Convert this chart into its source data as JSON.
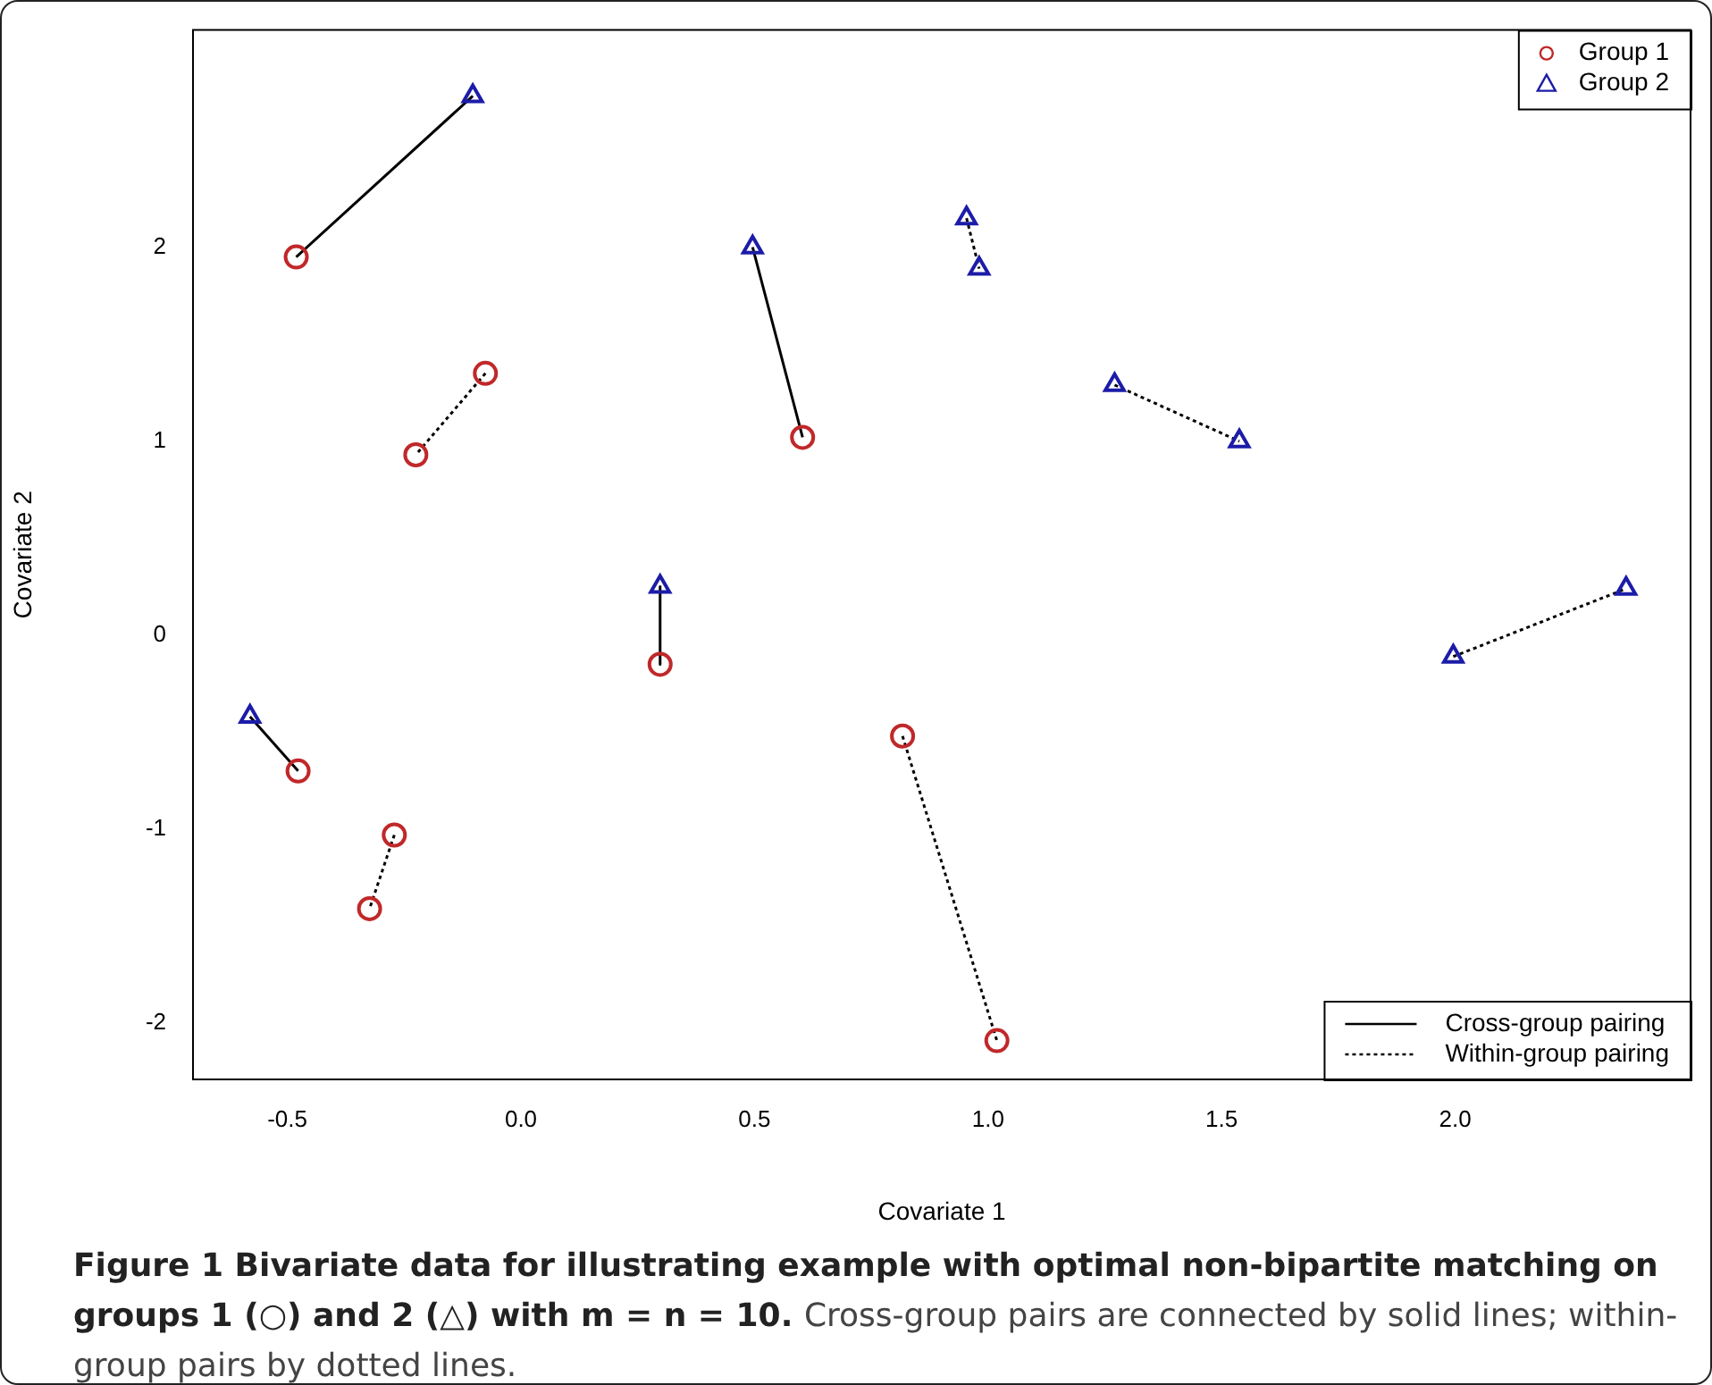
{
  "chart_data": {
    "type": "scatter",
    "xlabel": "Covariate 1",
    "ylabel": "Covariate 2",
    "xlim": [
      -0.702,
      2.504
    ],
    "ylim": [
      -2.29,
      3.12
    ],
    "xticks": [
      -0.5,
      {
        "value": 0,
        "label": "0.0"
      },
      0.5,
      {
        "value": 1,
        "label": "1.0"
      },
      1.5,
      {
        "value": 2,
        "label": "2.0"
      }
    ],
    "yticks": [
      -2,
      -1,
      0,
      1,
      2
    ],
    "grid": false,
    "legend": "top right",
    "series": [
      {
        "name": "Group 1",
        "color": "#c0282a",
        "marker": "circle",
        "x": [
          -0.481,
          -0.076,
          -0.225,
          0.603,
          0.298,
          -0.477,
          -0.271,
          -0.324,
          0.817,
          1.019
        ],
        "values": [
          1.95,
          1.35,
          0.93,
          1.02,
          -0.15,
          -0.7,
          -1.03,
          -1.41,
          -0.52,
          -2.09
        ]
      },
      {
        "name": "Group 2",
        "color": "#1c1ca8",
        "marker": "triangle",
        "x": [
          -0.103,
          0.496,
          0.954,
          0.981,
          1.271,
          1.538,
          0.298,
          -0.58,
          1.996,
          2.366
        ],
        "values": [
          2.78,
          2.0,
          2.15,
          1.89,
          1.29,
          1.0,
          0.25,
          -0.42,
          -0.11,
          0.24
        ]
      },
      {
        "name": "Cross-group pairing",
        "type": "line",
        "color": "#000000",
        "marker": "none",
        "line_style": "solid",
        "x": [
          -0.481,
          -0.103,
          null,
          0.496,
          0.603,
          null,
          0.298,
          0.298,
          null,
          -0.58,
          -0.477
        ],
        "values": [
          1.95,
          2.78,
          null,
          2.0,
          1.02,
          null,
          0.25,
          -0.15,
          null,
          -0.42,
          -0.7
        ]
      },
      {
        "name": "Within-group pairing",
        "type": "line",
        "color": "#000000",
        "marker": "none",
        "line_style": "dotted",
        "x": [
          -0.076,
          -0.225,
          null,
          -0.271,
          -0.324,
          null,
          0.817,
          1.019,
          null,
          0.954,
          0.981,
          null,
          1.271,
          1.538,
          null,
          1.996,
          2.366
        ],
        "values": [
          1.35,
          0.93,
          null,
          -1.03,
          -1.41,
          null,
          -0.52,
          -2.09,
          null,
          2.15,
          1.89,
          null,
          1.29,
          1.0,
          null,
          -0.11,
          0.24
        ]
      }
    ],
    "annotations": [
      "Figure 1 Bivariate data for illustrating example with optimal non-bipartite matching on groups 1 (○) and 2 (△) with m = n = 10.",
      "Cross-group pairs are connected by solid lines; within-group pairs by dotted lines."
    ]
  }
}
